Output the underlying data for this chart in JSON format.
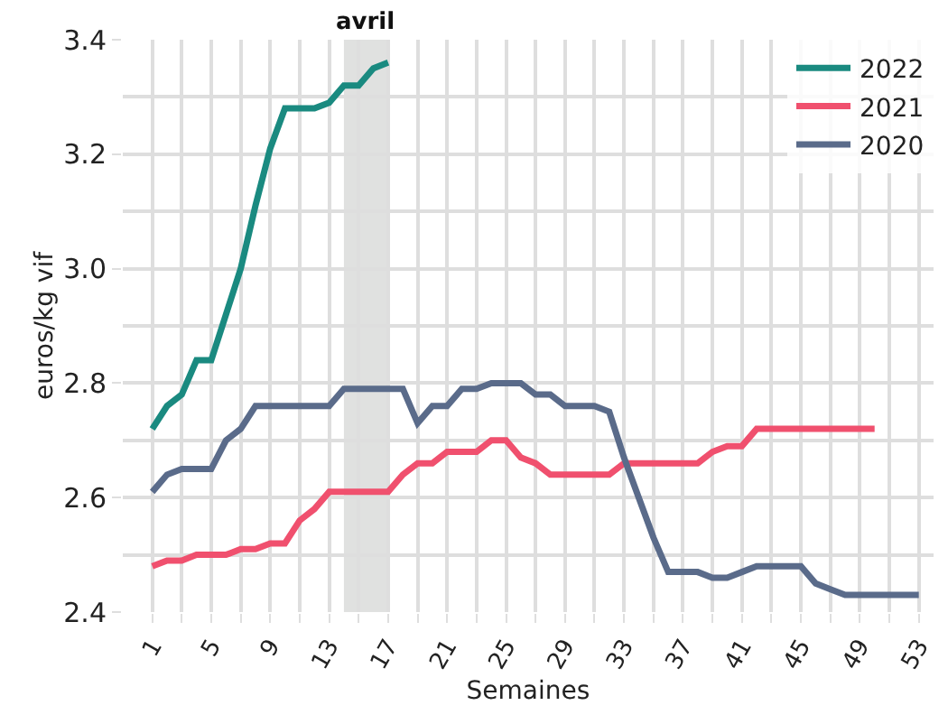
{
  "chart_data": {
    "type": "line",
    "xlabel": "Semaines",
    "ylabel": "euros/kg vif",
    "x": [
      1,
      2,
      3,
      4,
      5,
      6,
      7,
      8,
      9,
      10,
      11,
      12,
      13,
      14,
      15,
      16,
      17,
      18,
      19,
      20,
      21,
      22,
      23,
      24,
      25,
      26,
      27,
      28,
      29,
      30,
      31,
      32,
      33,
      34,
      35,
      36,
      37,
      38,
      39,
      40,
      41,
      42,
      43,
      44,
      45,
      46,
      47,
      48,
      49,
      50,
      51,
      52,
      53
    ],
    "series": [
      {
        "name": "2022",
        "color": "#1a8a80",
        "values": [
          2.72,
          2.76,
          2.78,
          2.84,
          2.84,
          2.92,
          3.0,
          3.11,
          3.21,
          3.28,
          3.28,
          3.28,
          3.29,
          3.32,
          3.32,
          3.35,
          3.36,
          null,
          null,
          null,
          null,
          null,
          null,
          null,
          null,
          null,
          null,
          null,
          null,
          null,
          null,
          null,
          null,
          null,
          null,
          null,
          null,
          null,
          null,
          null,
          null,
          null,
          null,
          null,
          null,
          null,
          null,
          null,
          null,
          null,
          null,
          null,
          null
        ]
      },
      {
        "name": "2021",
        "color": "#f0506e",
        "values": [
          2.48,
          2.49,
          2.49,
          2.5,
          2.5,
          2.5,
          2.51,
          2.51,
          2.52,
          2.52,
          2.56,
          2.58,
          2.61,
          2.61,
          2.61,
          2.61,
          2.61,
          2.64,
          2.66,
          2.66,
          2.68,
          2.68,
          2.68,
          2.7,
          2.7,
          2.67,
          2.66,
          2.64,
          2.64,
          2.64,
          2.64,
          2.64,
          2.66,
          2.66,
          2.66,
          2.66,
          2.66,
          2.66,
          2.68,
          2.69,
          2.69,
          2.72,
          2.72,
          2.72,
          2.72,
          2.72,
          2.72,
          2.72,
          2.72,
          2.72,
          null,
          null,
          null
        ]
      },
      {
        "name": "2020",
        "color": "#5a6b8a",
        "values": [
          2.61,
          2.64,
          2.65,
          2.65,
          2.65,
          2.7,
          2.72,
          2.76,
          2.76,
          2.76,
          2.76,
          2.76,
          2.76,
          2.79,
          2.79,
          2.79,
          2.79,
          2.79,
          2.73,
          2.76,
          2.76,
          2.79,
          2.79,
          2.8,
          2.8,
          2.8,
          2.78,
          2.78,
          2.76,
          2.76,
          2.76,
          2.75,
          2.67,
          2.6,
          2.53,
          2.47,
          2.47,
          2.47,
          2.46,
          2.46,
          2.47,
          2.48,
          2.48,
          2.48,
          2.48,
          2.45,
          2.44,
          2.43,
          2.43,
          2.43,
          2.43,
          2.43,
          2.43
        ]
      }
    ],
    "xlim": [
      -1,
      54
    ],
    "xticks": [
      1,
      5,
      9,
      13,
      17,
      21,
      25,
      29,
      33,
      37,
      41,
      45,
      49,
      53
    ],
    "ylim": [
      2.4,
      3.4
    ],
    "yticks": [
      {
        "value": 2.4,
        "label": "2.4"
      },
      {
        "value": 2.6,
        "label": "2.6"
      },
      {
        "value": 2.8,
        "label": "2.8"
      },
      {
        "value": 3.0,
        "label": "3.0"
      },
      {
        "value": 3.2,
        "label": "3.2"
      },
      {
        "value": 3.4,
        "label": "3.4"
      }
    ],
    "bands": [
      {
        "axis": "x",
        "from": 14,
        "to": 17,
        "label": "avril",
        "color": "#e0e1e0"
      }
    ],
    "grid": true,
    "legend": "top right",
    "line_style": "solid",
    "marker": "none"
  }
}
